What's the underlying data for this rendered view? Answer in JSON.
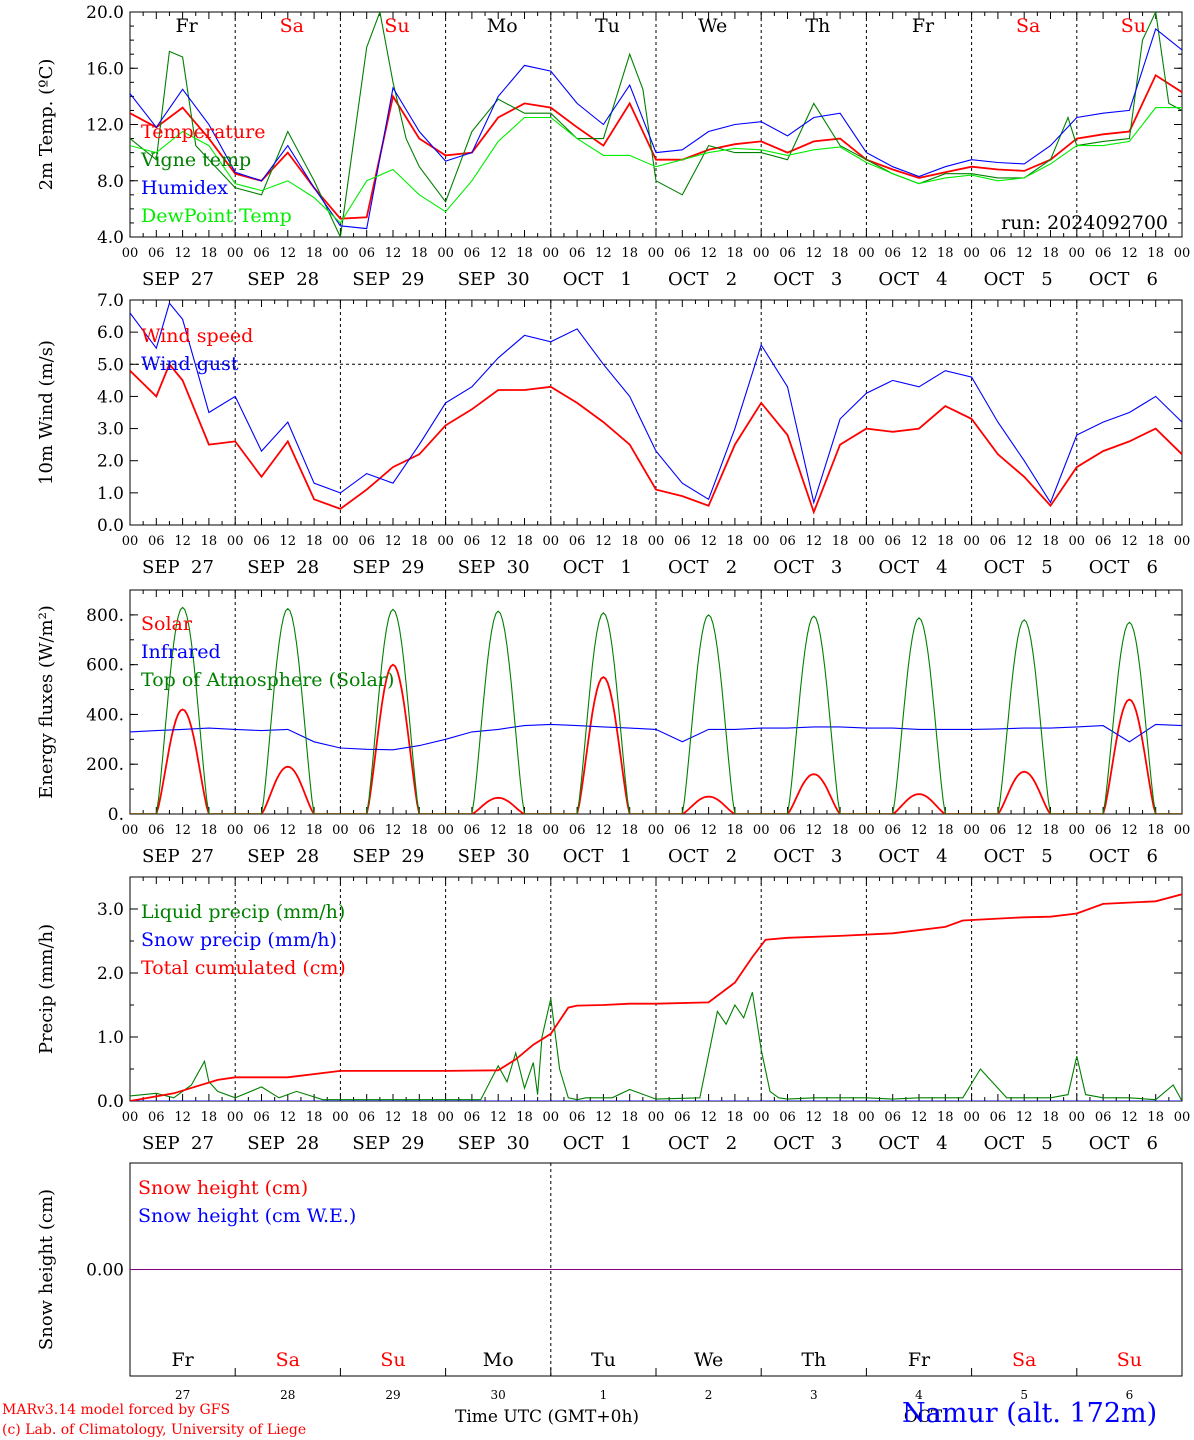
{
  "run_label": "run: 2024092700",
  "footer": {
    "model_line": "MARv3.14 model forced by GFS",
    "credit_line": "(c) Lab. of Climatology, University of Liege",
    "xaxis_label": "Time UTC (GMT+0h)",
    "station": "Namur (alt. 172m)",
    "month_hint": "OCT"
  },
  "colors": {
    "red": "#ff0000",
    "green": "#008000",
    "blue": "#0000ff",
    "light_green": "#00ee00",
    "purple": "#800080"
  },
  "days": [
    {
      "abbr": "Fr",
      "weekend": false,
      "date": "SEP  27",
      "num": "27"
    },
    {
      "abbr": "Sa",
      "weekend": true,
      "date": "SEP  28",
      "num": "28"
    },
    {
      "abbr": "Su",
      "weekend": true,
      "date": "SEP  29",
      "num": "29"
    },
    {
      "abbr": "Mo",
      "weekend": false,
      "date": "SEP  30",
      "num": "30"
    },
    {
      "abbr": "Tu",
      "weekend": false,
      "date": "OCT   1",
      "num": "1"
    },
    {
      "abbr": "We",
      "weekend": false,
      "date": "OCT   2",
      "num": "2"
    },
    {
      "abbr": "Th",
      "weekend": false,
      "date": "OCT   3",
      "num": "3"
    },
    {
      "abbr": "Fr",
      "weekend": false,
      "date": "OCT   4",
      "num": "4"
    },
    {
      "abbr": "Sa",
      "weekend": true,
      "date": "OCT   5",
      "num": "5"
    },
    {
      "abbr": "Su",
      "weekend": true,
      "date": "OCT   6",
      "num": "6"
    }
  ],
  "hour_ticks": [
    "00",
    "06",
    "12",
    "18"
  ],
  "chart_data": [
    {
      "type": "line",
      "ylabel": "2m Temp. (ºC)",
      "ylim": [
        4,
        20
      ],
      "yticks": [
        "4.0",
        "8.0",
        "12.0",
        "16.0",
        "20.0"
      ],
      "x_unit": "hours from SEP 27 00 UTC",
      "series": [
        {
          "name": "Temperature",
          "color": "#ff0000",
          "x": [
            0,
            6,
            12,
            18,
            24,
            30,
            36,
            42,
            48,
            54,
            60,
            66,
            72,
            78,
            84,
            90,
            96,
            102,
            108,
            114,
            120,
            126,
            132,
            138,
            144,
            150,
            156,
            162,
            168,
            174,
            180,
            186,
            192,
            198,
            204,
            210,
            216,
            222,
            228,
            234,
            240
          ],
          "values": [
            12.8,
            11.8,
            13.2,
            11.0,
            8.5,
            8.0,
            10.0,
            7.5,
            5.3,
            5.4,
            14.0,
            11.0,
            9.8,
            10.0,
            12.5,
            13.5,
            13.2,
            11.8,
            10.5,
            13.5,
            9.5,
            9.5,
            10.2,
            10.6,
            10.8,
            10.0,
            10.8,
            11.0,
            9.5,
            8.8,
            8.2,
            8.6,
            9.0,
            8.8,
            8.7,
            9.5,
            11.0,
            11.3,
            11.5,
            15.5,
            14.3
          ]
        },
        {
          "name": "Vigne temp",
          "color": "#008000",
          "x": [
            0,
            6,
            9,
            12,
            15,
            18,
            21,
            24,
            30,
            36,
            42,
            48,
            54,
            57,
            60,
            63,
            66,
            72,
            78,
            84,
            90,
            96,
            102,
            108,
            114,
            117,
            120,
            126,
            132,
            138,
            144,
            150,
            156,
            162,
            168,
            174,
            180,
            186,
            192,
            198,
            204,
            210,
            214,
            216,
            222,
            228,
            231,
            234,
            237,
            240
          ],
          "values": [
            11.0,
            9.5,
            17.2,
            16.8,
            10.5,
            9.5,
            8.5,
            7.5,
            7.0,
            11.5,
            8.0,
            4.0,
            17.5,
            20.0,
            15.0,
            11.0,
            9.0,
            6.5,
            11.5,
            13.8,
            12.8,
            12.8,
            11.0,
            11.0,
            17.0,
            14.5,
            8.0,
            7.0,
            10.5,
            10.0,
            10.0,
            9.5,
            13.5,
            10.5,
            9.5,
            8.5,
            7.8,
            8.5,
            8.5,
            8.2,
            8.2,
            9.5,
            12.5,
            10.5,
            10.8,
            11.0,
            18.0,
            20.0,
            13.5,
            13.0
          ]
        },
        {
          "name": "Humidex",
          "color": "#0000ff",
          "x": [
            0,
            6,
            12,
            18,
            24,
            30,
            36,
            42,
            48,
            54,
            60,
            66,
            72,
            78,
            84,
            90,
            96,
            102,
            108,
            114,
            120,
            126,
            132,
            138,
            144,
            150,
            156,
            162,
            168,
            174,
            180,
            186,
            192,
            198,
            204,
            210,
            216,
            222,
            228,
            234,
            240
          ],
          "values": [
            14.2,
            11.8,
            14.5,
            12.0,
            8.6,
            8.0,
            10.5,
            7.5,
            4.8,
            4.6,
            14.6,
            11.5,
            9.4,
            10.0,
            14.0,
            16.2,
            15.8,
            13.5,
            12.0,
            14.8,
            10.0,
            10.2,
            11.5,
            12.0,
            12.2,
            11.2,
            12.5,
            12.8,
            10.0,
            9.0,
            8.3,
            9.0,
            9.5,
            9.3,
            9.2,
            10.5,
            12.5,
            12.8,
            13.0,
            18.8,
            17.3
          ]
        },
        {
          "name": "DewPoint Temp",
          "color": "#00ee00",
          "x": [
            0,
            6,
            12,
            18,
            24,
            30,
            36,
            42,
            48,
            54,
            60,
            66,
            72,
            78,
            84,
            90,
            96,
            102,
            108,
            114,
            120,
            126,
            132,
            138,
            144,
            150,
            156,
            162,
            168,
            174,
            180,
            186,
            192,
            198,
            204,
            210,
            216,
            222,
            228,
            234,
            240
          ],
          "values": [
            10.5,
            10.0,
            11.5,
            10.5,
            7.8,
            7.3,
            8.0,
            6.8,
            5.0,
            8.0,
            8.8,
            7.0,
            5.8,
            8.0,
            10.8,
            12.5,
            12.5,
            11.0,
            9.8,
            9.8,
            9.0,
            9.5,
            10.0,
            10.3,
            10.2,
            9.8,
            10.2,
            10.4,
            9.3,
            8.5,
            7.8,
            8.2,
            8.4,
            8.0,
            8.2,
            9.2,
            10.5,
            10.5,
            10.8,
            13.2,
            13.2
          ]
        }
      ]
    },
    {
      "type": "line",
      "ylabel": "10m Wind (m/s)",
      "ylim": [
        0,
        7
      ],
      "yticks": [
        "0.0",
        "1.0",
        "2.0",
        "3.0",
        "4.0",
        "5.0",
        "6.0",
        "7.0"
      ],
      "x_unit": "hours from SEP 27 00 UTC",
      "series": [
        {
          "name": "Wind speed",
          "color": "#ff0000",
          "x": [
            0,
            6,
            9,
            12,
            18,
            24,
            30,
            36,
            42,
            48,
            54,
            60,
            66,
            72,
            78,
            84,
            90,
            96,
            102,
            108,
            114,
            120,
            126,
            132,
            138,
            144,
            150,
            156,
            162,
            168,
            174,
            180,
            186,
            192,
            198,
            204,
            210,
            216,
            222,
            228,
            234,
            240
          ],
          "values": [
            4.8,
            4.0,
            5.0,
            4.5,
            2.5,
            2.6,
            1.5,
            2.6,
            0.8,
            0.5,
            1.1,
            1.8,
            2.2,
            3.1,
            3.6,
            4.2,
            4.2,
            4.3,
            3.8,
            3.2,
            2.5,
            1.1,
            0.9,
            0.6,
            2.5,
            3.8,
            2.8,
            0.4,
            2.5,
            3.0,
            2.9,
            3.0,
            3.7,
            3.3,
            2.2,
            1.5,
            0.6,
            1.8,
            2.3,
            2.6,
            3.0,
            2.2
          ]
        },
        {
          "name": "Wind gust",
          "color": "#0000ff",
          "x": [
            0,
            6,
            9,
            12,
            18,
            24,
            30,
            36,
            42,
            48,
            54,
            60,
            66,
            72,
            78,
            84,
            90,
            96,
            102,
            108,
            114,
            120,
            126,
            132,
            138,
            144,
            150,
            156,
            162,
            168,
            174,
            180,
            186,
            192,
            198,
            204,
            210,
            216,
            222,
            228,
            234,
            240
          ],
          "values": [
            6.6,
            5.5,
            6.9,
            6.4,
            3.5,
            4.0,
            2.3,
            3.2,
            1.3,
            1.0,
            1.6,
            1.3,
            2.5,
            3.8,
            4.3,
            5.2,
            5.9,
            5.7,
            6.1,
            5.0,
            4.0,
            2.3,
            1.3,
            0.8,
            3.0,
            5.6,
            4.3,
            0.7,
            3.3,
            4.1,
            4.5,
            4.3,
            4.8,
            4.6,
            3.2,
            2.0,
            0.7,
            2.8,
            3.2,
            3.5,
            4.0,
            3.2
          ]
        }
      ]
    },
    {
      "type": "line",
      "ylabel": "Energy fluxes (W/m²)",
      "ylim": [
        0,
        900
      ],
      "yticks": [
        "0.",
        "200.",
        "400.",
        "600.",
        "800."
      ],
      "x_unit": "hours from SEP 27 00 UTC",
      "series": [
        {
          "name": "Solar",
          "color": "#ff0000",
          "daily_peaks": [
            420,
            190,
            600,
            65,
            550,
            70,
            160,
            80,
            170,
            460
          ]
        },
        {
          "name": "Infrared",
          "color": "#0000ff",
          "x": [
            0,
            6,
            12,
            18,
            24,
            30,
            36,
            42,
            48,
            54,
            60,
            66,
            72,
            78,
            84,
            90,
            96,
            102,
            108,
            114,
            120,
            126,
            132,
            138,
            144,
            150,
            156,
            162,
            168,
            174,
            180,
            186,
            192,
            198,
            204,
            210,
            216,
            222,
            228,
            234,
            240
          ],
          "values": [
            330,
            335,
            340,
            345,
            340,
            335,
            340,
            290,
            265,
            260,
            258,
            275,
            300,
            330,
            340,
            355,
            360,
            355,
            350,
            345,
            340,
            290,
            340,
            340,
            345,
            345,
            350,
            350,
            345,
            345,
            340,
            340,
            340,
            342,
            345,
            345,
            350,
            355,
            290,
            360,
            355
          ]
        },
        {
          "name": "Top of Atmosphere (Solar)",
          "color": "#008000",
          "daily_peaks": [
            830,
            825,
            822,
            815,
            808,
            800,
            795,
            788,
            780,
            770
          ]
        }
      ]
    },
    {
      "type": "line",
      "ylabel": "Precip (mm/h)",
      "ylim": [
        0,
        3.5
      ],
      "yticks": [
        "0.0",
        "1.0",
        "2.0",
        "3.0"
      ],
      "x_unit": "hours from SEP 27 00 UTC",
      "series": [
        {
          "name": "Liquid precip (mm/h)",
          "color": "#008000",
          "x": [
            0,
            6,
            10,
            14,
            17,
            18,
            20,
            24,
            30,
            34,
            38,
            44,
            50,
            60,
            70,
            80,
            84,
            86,
            88,
            90,
            92,
            93,
            94,
            96,
            98,
            100,
            102,
            104,
            110,
            114,
            120,
            130,
            134,
            136,
            138,
            140,
            142,
            144,
            146,
            148,
            150,
            156,
            162,
            168,
            174,
            180,
            186,
            190,
            194,
            200,
            206,
            210,
            214,
            216,
            218,
            222,
            228,
            234,
            238,
            240
          ],
          "values": [
            0.08,
            0.12,
            0.05,
            0.25,
            0.62,
            0.3,
            0.15,
            0.05,
            0.22,
            0.05,
            0.15,
            0.02,
            0.02,
            0.02,
            0.02,
            0.02,
            0.55,
            0.3,
            0.75,
            0.2,
            0.6,
            0.1,
            1.0,
            1.6,
            0.5,
            0.05,
            0.02,
            0.05,
            0.05,
            0.18,
            0.03,
            0.05,
            1.4,
            1.2,
            1.5,
            1.3,
            1.7,
            0.8,
            0.15,
            0.05,
            0.03,
            0.05,
            0.05,
            0.05,
            0.03,
            0.05,
            0.05,
            0.05,
            0.5,
            0.05,
            0.05,
            0.05,
            0.1,
            0.7,
            0.1,
            0.05,
            0.05,
            0.02,
            0.25,
            0.0
          ]
        },
        {
          "name": "Snow precip (mm/h)",
          "color": "#0000ff",
          "x": [
            0,
            240
          ],
          "values": [
            0,
            0
          ]
        },
        {
          "name": "Total cumulated (cm)",
          "color": "#ff0000",
          "x": [
            0,
            10,
            20,
            24,
            36,
            48,
            60,
            72,
            84,
            88,
            92,
            96,
            100,
            102,
            108,
            114,
            120,
            132,
            138,
            142,
            145,
            150,
            162,
            174,
            186,
            190,
            198,
            204,
            210,
            216,
            222,
            234,
            240
          ],
          "values": [
            0.0,
            0.12,
            0.33,
            0.37,
            0.37,
            0.47,
            0.47,
            0.47,
            0.48,
            0.65,
            0.88,
            1.05,
            1.46,
            1.49,
            1.5,
            1.52,
            1.52,
            1.54,
            1.85,
            2.25,
            2.52,
            2.55,
            2.58,
            2.62,
            2.72,
            2.82,
            2.85,
            2.87,
            2.88,
            2.93,
            3.08,
            3.12,
            3.23
          ]
        }
      ]
    },
    {
      "type": "line",
      "ylabel": "Snow height (cm)",
      "ylim": [
        -1,
        1
      ],
      "yticks": [
        "0.00"
      ],
      "x_unit": "hours from SEP 27 00 UTC",
      "series": [
        {
          "name": "Snow height (cm)",
          "color": "#ff0000",
          "x": [
            0,
            240
          ],
          "values": [
            0,
            0
          ]
        },
        {
          "name": "Snow height (cm W.E.)",
          "color": "#0000ff",
          "x": [
            0,
            240
          ],
          "values": [
            0,
            0
          ]
        }
      ]
    }
  ]
}
